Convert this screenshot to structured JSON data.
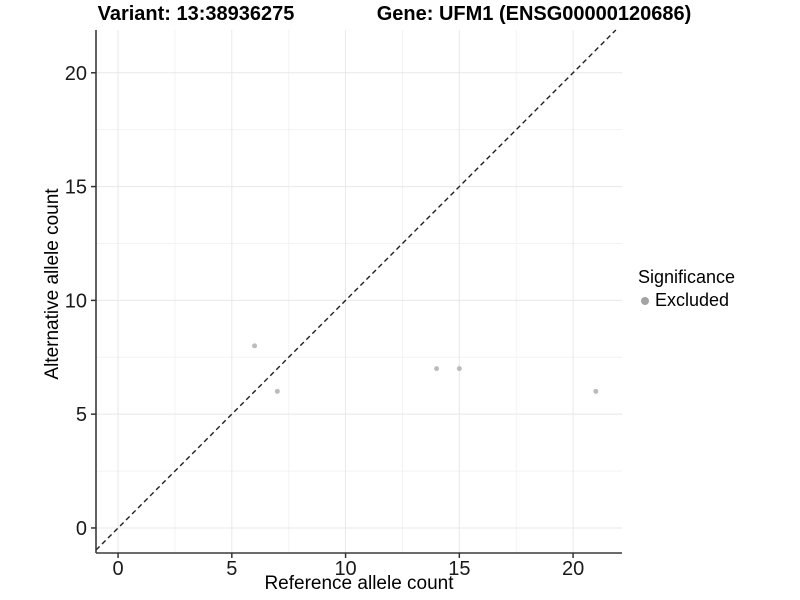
{
  "chart_data": {
    "type": "scatter",
    "titles": [
      "Variant: 13:38936275",
      "Gene: UFM1 (ENSG00000120686)"
    ],
    "xlabel": "Reference allele count",
    "ylabel": "Alternative allele count",
    "xlim": [
      -0.97,
      22.15
    ],
    "ylim": [
      -1.1,
      21.88
    ],
    "x_ticks": [
      0,
      5,
      10,
      15,
      20
    ],
    "y_ticks": [
      0,
      5,
      10,
      15,
      20
    ],
    "x_minor_ticks": [
      2.5,
      7.5,
      12.5,
      17.5
    ],
    "y_minor_ticks": [
      2.5,
      7.5,
      12.5,
      17.5
    ],
    "grid": {
      "major": true,
      "minor": true
    },
    "reference_line": {
      "type": "identity",
      "slope": 1,
      "intercept": 0,
      "style": "dashed",
      "color": "#1f1f1f"
    },
    "series": [
      {
        "name": "Excluded",
        "color": "#bcbcbc",
        "points": [
          [
            6,
            8
          ],
          [
            7,
            6
          ],
          [
            14,
            7
          ],
          [
            15,
            7
          ],
          [
            21,
            6
          ]
        ]
      }
    ],
    "legend": {
      "title": "Significance",
      "position": "right",
      "items": [
        {
          "label": "Excluded",
          "marker_color": "#a3a3a3"
        }
      ]
    }
  },
  "style": {
    "background": "#ffffff",
    "grid_major": "#e8e8e8",
    "grid_minor": "#f3f3f3",
    "axis_line": "#3a3a3a",
    "tick_color": "#333333",
    "tick_label_color": "#1a1a1a",
    "point_color": "#bcbcbc"
  }
}
